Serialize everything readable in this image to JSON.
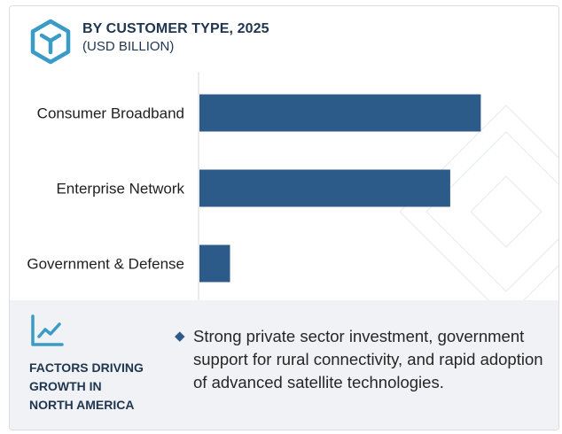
{
  "header": {
    "title": "BY CUSTOMER TYPE, 2025",
    "subtitle": "(USD BILLION)"
  },
  "colors": {
    "bar": "#2c5b8a",
    "heading": "#1f3550",
    "panel_bg": "#f0f2f5",
    "accent_icon": "#3a9bc7"
  },
  "icons": {
    "logo": "cube-logo-icon",
    "trend": "trend-line-icon",
    "bullet": "diamond-bullet-icon"
  },
  "chart_data": {
    "type": "bar",
    "orientation": "horizontal",
    "categories": [
      "Consumer Broadband",
      "Enterprise Network",
      "Government & Defense"
    ],
    "values": [
      9.2,
      8.2,
      1.0
    ],
    "xlim": [
      0,
      10
    ],
    "title": "BY CUSTOMER TYPE, 2025",
    "subtitle": "(USD BILLION)",
    "xlabel": "",
    "ylabel": "",
    "grid": false,
    "legend": "none"
  },
  "factors": {
    "heading_lines": [
      "FACTORS DRIVING",
      "GROWTH IN",
      "NORTH AMERICA"
    ],
    "bullet_symbol": "◆",
    "text": "Strong private sector investment, government support for rural connectivity, and rapid adoption of advanced satellite technologies."
  }
}
